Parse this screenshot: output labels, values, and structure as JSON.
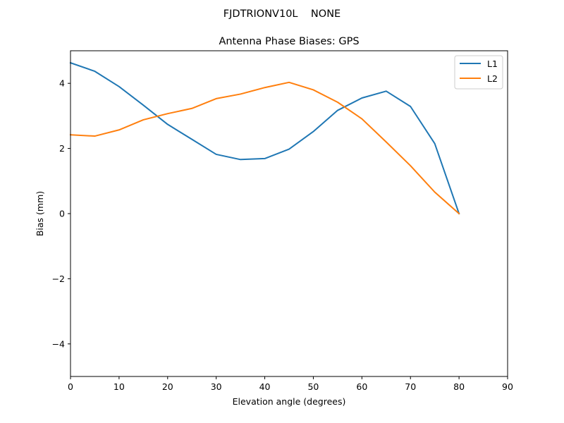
{
  "suptitle": "FJDTRIONV10L    NONE",
  "chart_data": {
    "type": "line",
    "title": "Antenna Phase Biases: GPS",
    "xlabel": "Elevation angle (degrees)",
    "ylabel": "Bias (mm)",
    "xlim": [
      0,
      90
    ],
    "ylim": [
      -5,
      5
    ],
    "xticks": [
      0,
      10,
      20,
      30,
      40,
      50,
      60,
      70,
      80,
      90
    ],
    "yticks": [
      -4,
      -2,
      0,
      2,
      4
    ],
    "xtick_labels": [
      "0",
      "10",
      "20",
      "30",
      "40",
      "50",
      "60",
      "70",
      "80",
      "90"
    ],
    "ytick_labels": [
      "−4",
      "−2",
      "0",
      "2",
      "4"
    ],
    "grid": false,
    "legend": "top-right",
    "x": [
      0,
      5,
      10,
      15,
      20,
      25,
      30,
      35,
      40,
      45,
      50,
      55,
      60,
      65,
      70,
      75,
      80
    ],
    "series": [
      {
        "name": "L1",
        "color": "#1f77b4",
        "values": [
          4.63,
          4.37,
          3.9,
          3.33,
          2.74,
          2.28,
          1.82,
          1.66,
          1.69,
          1.98,
          2.52,
          3.17,
          3.55,
          3.76,
          3.29,
          2.15,
          0.0
        ]
      },
      {
        "name": "L2",
        "color": "#ff7f0e",
        "values": [
          2.42,
          2.38,
          2.57,
          2.88,
          3.07,
          3.23,
          3.53,
          3.67,
          3.87,
          4.03,
          3.8,
          3.42,
          2.91,
          2.2,
          1.47,
          0.66,
          0.0
        ]
      }
    ]
  }
}
